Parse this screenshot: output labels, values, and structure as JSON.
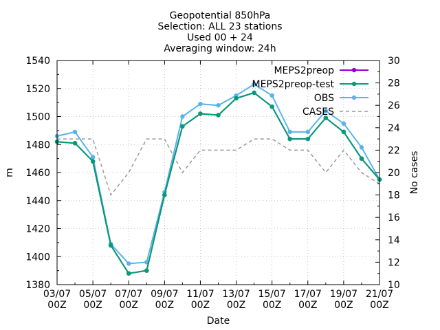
{
  "chart_data": {
    "type": "line",
    "title_lines": [
      "Geopotential 850hPa",
      "Selection: ALL      23 stations",
      "Used 00 + 24",
      "Averaging window: 24h"
    ],
    "xlabel": "Date",
    "ylabel": "m",
    "y2label": "No cases",
    "ylim": [
      1380,
      1540
    ],
    "y_ticks": [
      1380,
      1400,
      1420,
      1440,
      1460,
      1480,
      1500,
      1520,
      1540
    ],
    "y2lim": [
      10,
      30
    ],
    "y2_ticks": [
      10,
      12,
      14,
      16,
      18,
      20,
      22,
      24,
      26,
      28,
      30
    ],
    "x_tick_labels": [
      [
        "03/07",
        "00Z"
      ],
      [
        "05/07",
        "00Z"
      ],
      [
        "07/07",
        "00Z"
      ],
      [
        "09/07",
        "00Z"
      ],
      [
        "11/07",
        "00Z"
      ],
      [
        "13/07",
        "00Z"
      ],
      [
        "15/07",
        "00Z"
      ],
      [
        "17/07",
        "00Z"
      ],
      [
        "19/07",
        "00Z"
      ],
      [
        "21/07",
        "00Z"
      ]
    ],
    "x": [
      "2023-07-03",
      "2023-07-04",
      "2023-07-05",
      "2023-07-06",
      "2023-07-07",
      "2023-07-08",
      "2023-07-09",
      "2023-07-10",
      "2023-07-11",
      "2023-07-12",
      "2023-07-13",
      "2023-07-14",
      "2023-07-15",
      "2023-07-16",
      "2023-07-17",
      "2023-07-18",
      "2023-07-19",
      "2023-07-20",
      "2023-07-21"
    ],
    "legend_position": "top-right",
    "grid": true,
    "series": [
      {
        "name": "MEPS2preop",
        "axis": "left",
        "color": "#9400d3",
        "values": [
          1482,
          1481,
          1468,
          1408,
          1388,
          1390,
          1444,
          1493,
          1502,
          1501,
          1513,
          1517,
          1507,
          1484,
          1484,
          1499,
          1489,
          1470,
          1455
        ]
      },
      {
        "name": "MEPS2preop-test",
        "axis": "left",
        "color": "#009e73",
        "values": [
          1482,
          1481,
          1468,
          1408,
          1388,
          1390,
          1444,
          1493,
          1502,
          1501,
          1513,
          1517,
          1507,
          1484,
          1484,
          1499,
          1489,
          1470,
          1455
        ]
      },
      {
        "name": "OBS",
        "axis": "left",
        "color": "#56b4e9",
        "values": [
          1486,
          1489,
          1471,
          1409,
          1395,
          1396,
          1446,
          1500,
          1509,
          1508,
          1515,
          1523,
          1515,
          1489,
          1489,
          1504,
          1495,
          1478,
          1455
        ]
      },
      {
        "name": "CASES",
        "axis": "right",
        "color": "#999999",
        "values": [
          23,
          23,
          23,
          18,
          20,
          23,
          23,
          20,
          22,
          22,
          22,
          23,
          23,
          22,
          22,
          20,
          22,
          20,
          19
        ]
      }
    ]
  }
}
